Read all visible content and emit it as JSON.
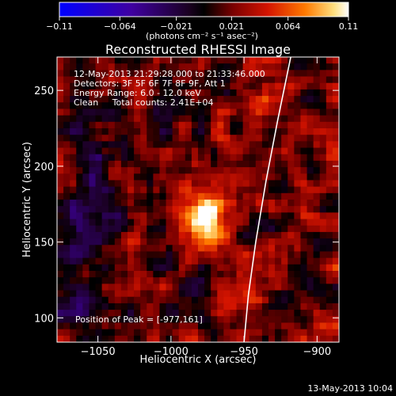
{
  "chart_data": {
    "type": "heatmap",
    "title": "Reconstructed RHESSI Image",
    "xlabel": "Heliocentric X (arcsec)",
    "ylabel": "Heliocentric Y (arcsec)",
    "xlim": [
      -1078,
      -885
    ],
    "ylim": [
      84,
      272
    ],
    "x_ticks": [
      -1050,
      -1000,
      -950,
      -900
    ],
    "x_tick_labels": [
      "−1050",
      "−1000",
      "−950",
      "−900"
    ],
    "y_ticks": [
      100,
      150,
      200,
      250
    ],
    "y_tick_labels": [
      "100",
      "150",
      "200",
      "250"
    ],
    "colorbar": {
      "min": -0.11,
      "max": 0.11,
      "ticks": [
        -0.11,
        -0.064,
        -0.021,
        0.021,
        0.064,
        0.11
      ],
      "tick_labels": [
        "−0.11",
        "−0.064",
        "−0.021",
        "0.021",
        "0.064",
        "0.11"
      ],
      "unit_label": "(photons cm⁻² s⁻¹ asec⁻²)"
    },
    "annotations": [
      "12-May-2013 21:29:28.000 to 21:33:46.000",
      "Detectors: 3F 5F 6F 7F 8F 9F, Att 1",
      "Energy Range: 6.0 - 12.0 keV",
      "Clean     Total counts: 2.41E+04"
    ],
    "peak_label": "Position of Peak = [-977,161]",
    "peak": [
      -977,
      161
    ],
    "limb_curve": [
      [
        -950,
        84
      ],
      [
        -947,
        115
      ],
      [
        -942,
        150
      ],
      [
        -935,
        190
      ],
      [
        -927,
        230
      ],
      [
        -918,
        272
      ]
    ],
    "grid": false
  },
  "footer": {
    "timestamp": "13-May-2013 10:04"
  },
  "colors": {
    "background": "#000000",
    "text": "#ffffff",
    "limb": "#ffffff"
  }
}
